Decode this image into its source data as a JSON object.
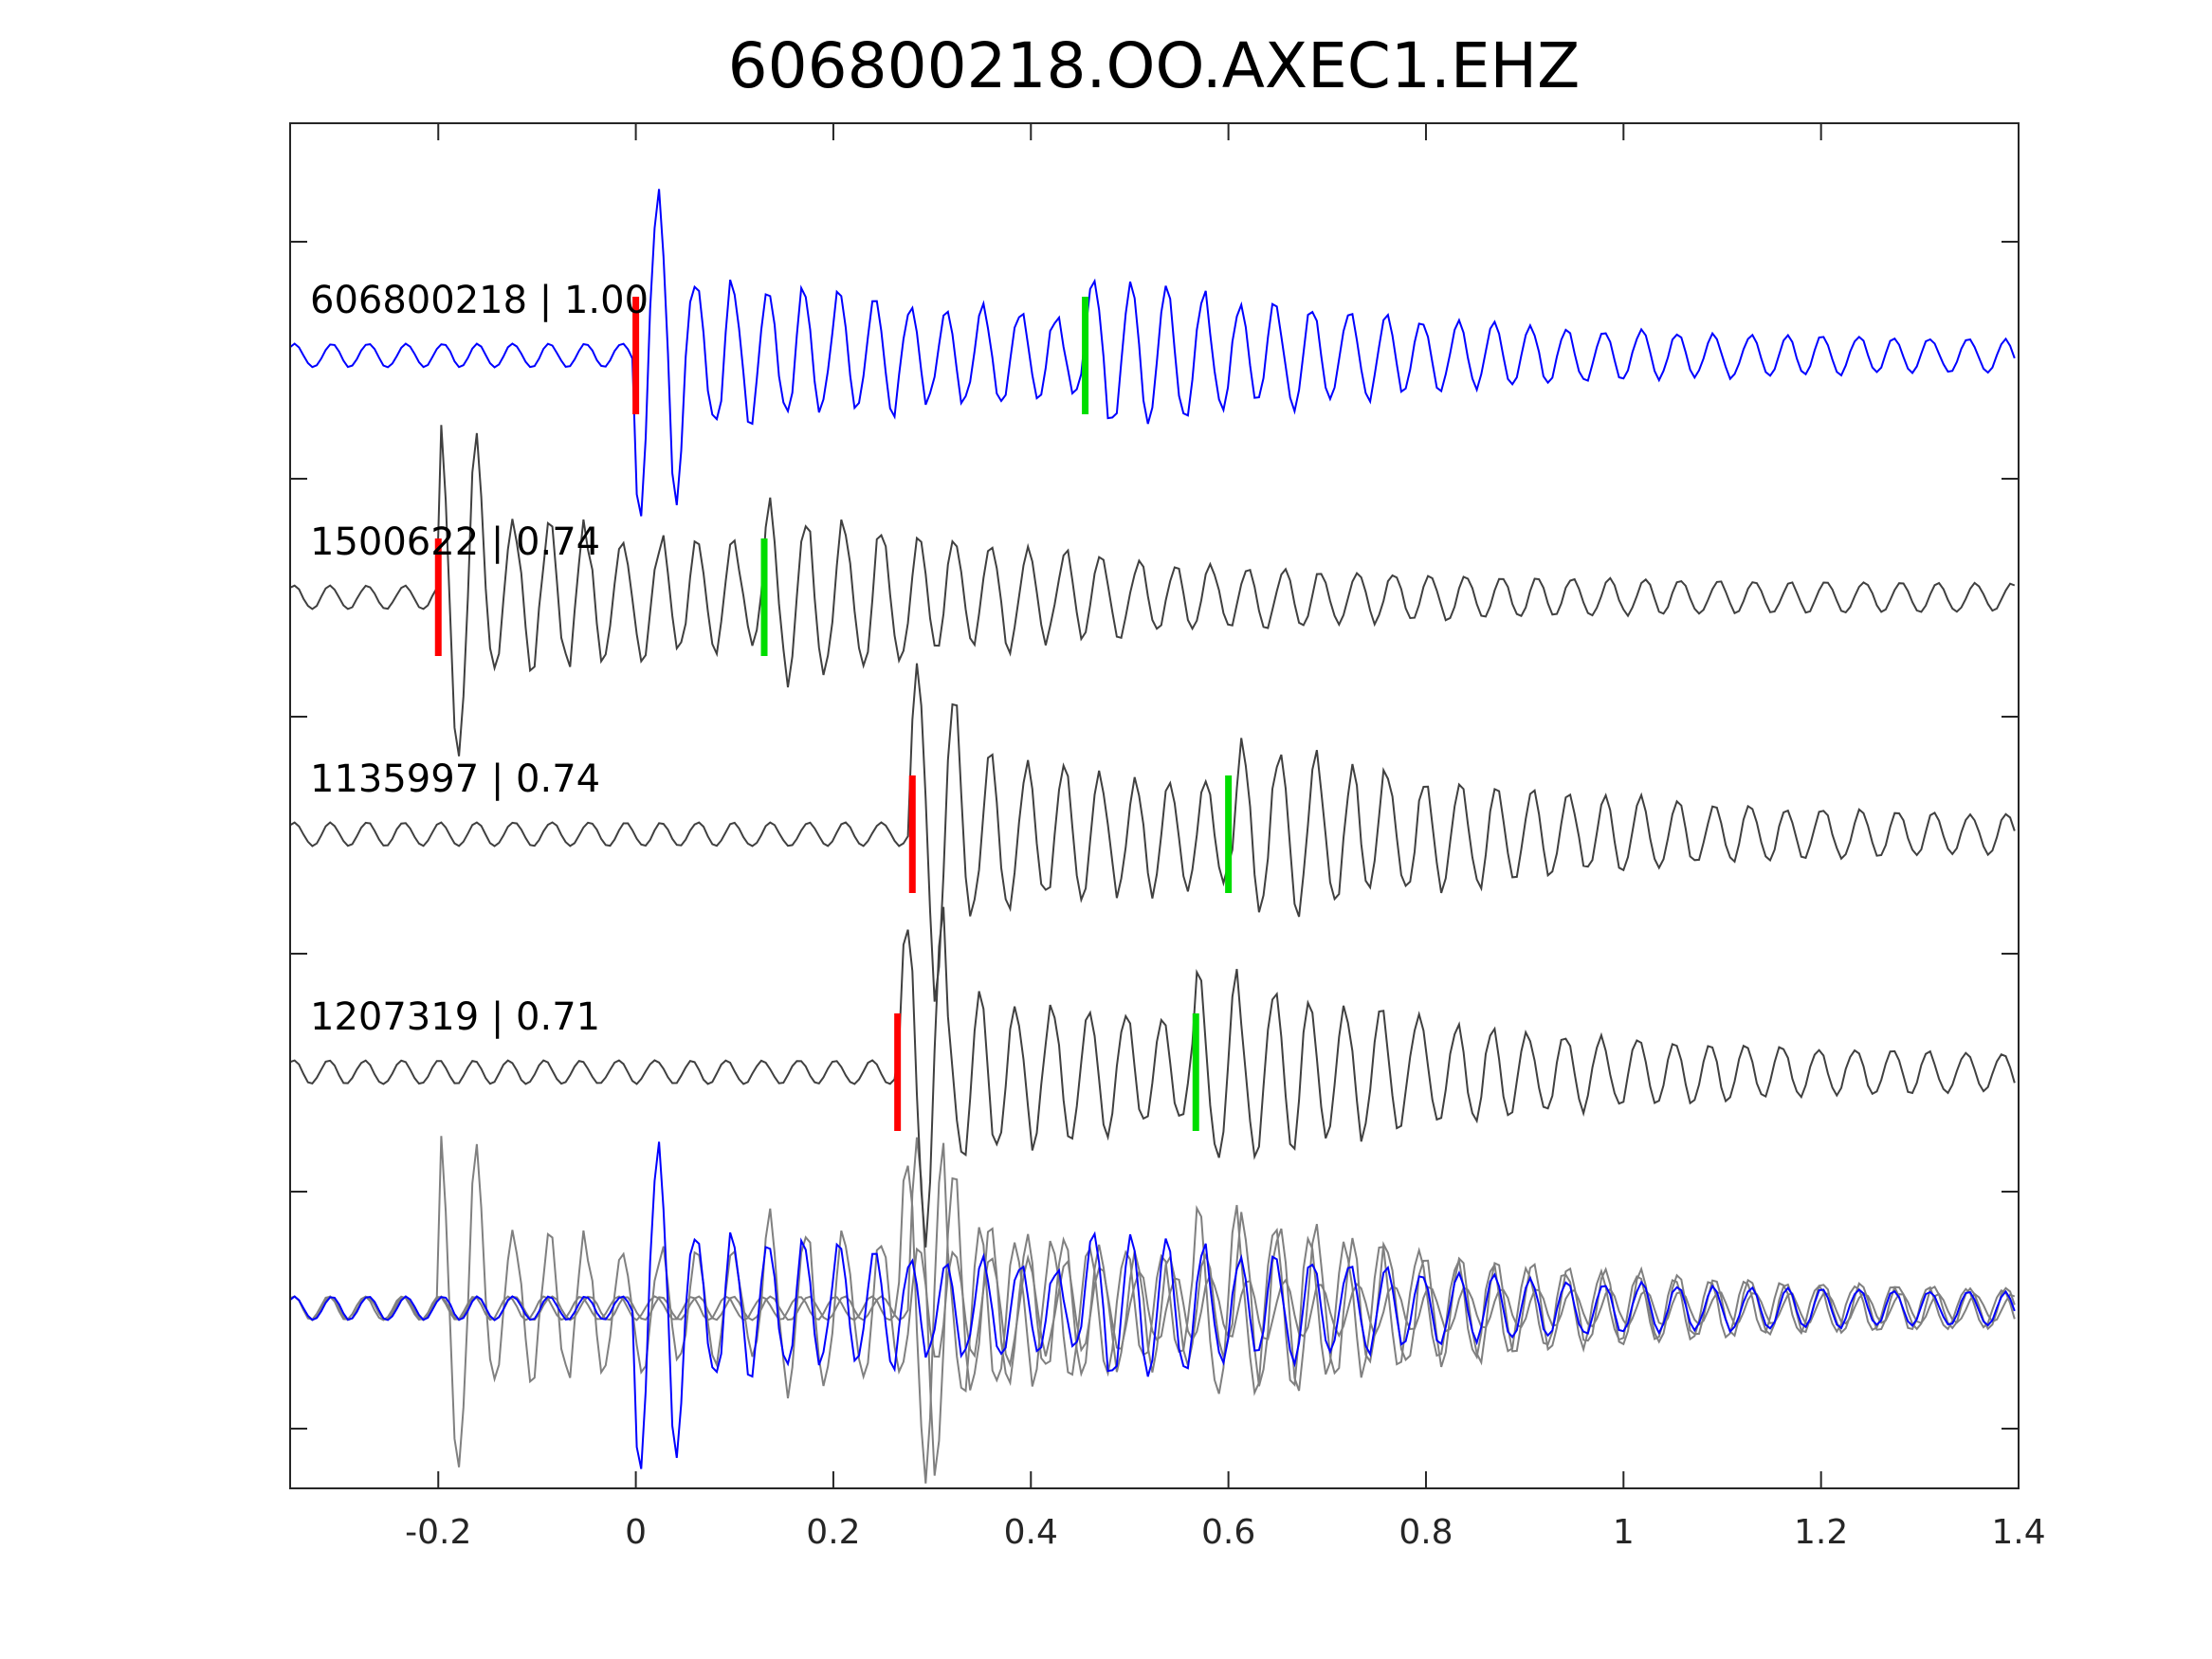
{
  "chart_data": {
    "type": "line",
    "title": "606800218.OO.AXEC1.EHZ",
    "xlabel": "",
    "ylabel": "",
    "xlim": [
      -0.35,
      1.4
    ],
    "x_ticks": [
      "-0.2",
      "0",
      "0.2",
      "0.4",
      "0.6",
      "0.8",
      "1",
      "1.2",
      "1.4"
    ],
    "x_tick_values": [
      -0.2,
      0,
      0.2,
      0.4,
      0.6,
      0.8,
      1,
      1.2,
      1.4
    ],
    "grid": false,
    "colors": {
      "reference": "#0000ff",
      "other": "#404040",
      "overlay_other": "#808080",
      "p_pick": "#ff0000",
      "s_pick": "#00dd00"
    },
    "series": [
      {
        "name": "606800218",
        "label": "606800218 | 1.00",
        "correlation": 1.0,
        "p_pick": 0.0,
        "s_pick": 0.455,
        "peak_amplitude": 1.0,
        "color": "#0000ff"
      },
      {
        "name": "1500622",
        "label": "1500622 | 0.74",
        "correlation": 0.74,
        "p_pick": -0.2,
        "s_pick": 0.13,
        "peak_amplitude": 1.0,
        "color": "#404040"
      },
      {
        "name": "1135997",
        "label": "1135997 | 0.74",
        "correlation": 0.74,
        "p_pick": 0.28,
        "s_pick": 0.6,
        "peak_amplitude": 1.0,
        "color": "#404040"
      },
      {
        "name": "1207319",
        "label": "1207319 | 0.71",
        "correlation": 0.71,
        "p_pick": 0.265,
        "s_pick": 0.567,
        "peak_amplitude": 1.0,
        "color": "#404040"
      }
    ],
    "overlay": "all traces superimposed in bottom panel"
  }
}
